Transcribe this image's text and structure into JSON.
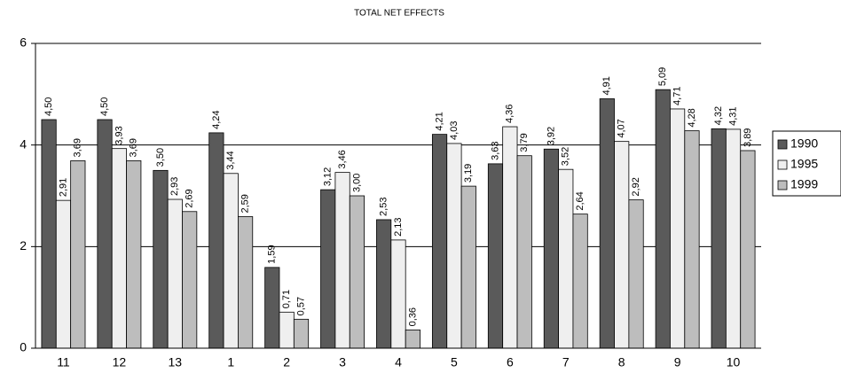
{
  "chart_data": {
    "type": "bar",
    "title": "TOTAL NET EFFECTS",
    "categories": [
      "11",
      "12",
      "13",
      "1",
      "2",
      "3",
      "4",
      "5",
      "6",
      "7",
      "8",
      "9",
      "10"
    ],
    "series": [
      {
        "name": "1990",
        "color": "#5a5a5a",
        "values": [
          4.5,
          4.5,
          3.5,
          4.24,
          1.59,
          3.12,
          2.53,
          4.21,
          3.63,
          3.92,
          4.91,
          5.09,
          4.32
        ],
        "value_labels": [
          "4,50",
          "4,50",
          "3,50",
          "4,24",
          "1,59",
          "3,12",
          "2,53",
          "4,21",
          "3,63",
          "3,92",
          "4,91",
          "5,09",
          "4,32"
        ]
      },
      {
        "name": "1995",
        "color": "#efefef",
        "values": [
          2.91,
          3.93,
          2.93,
          3.44,
          0.71,
          3.46,
          2.13,
          4.03,
          4.36,
          3.52,
          4.07,
          4.71,
          4.31
        ],
        "value_labels": [
          "2,91",
          "3,93",
          "2,93",
          "3,44",
          "0,71",
          "3,46",
          "2,13",
          "4,03",
          "4,36",
          "3,52",
          "4,07",
          "4,71",
          "4,31"
        ]
      },
      {
        "name": "1999",
        "color": "#bdbdbd",
        "values": [
          3.69,
          3.69,
          2.69,
          2.59,
          0.57,
          3.0,
          0.36,
          3.19,
          3.79,
          2.64,
          2.92,
          4.28,
          3.89
        ],
        "value_labels": [
          "3,69",
          "3,69",
          "2,69",
          "2,59",
          "0,57",
          "3,00",
          "0,36",
          "3,19",
          "3,79",
          "2,64",
          "2,92",
          "4,28",
          "3,89"
        ]
      }
    ],
    "ylim": [
      0,
      6
    ],
    "yticks": [
      0,
      2,
      4,
      6
    ],
    "grid": true,
    "legend": "right"
  }
}
